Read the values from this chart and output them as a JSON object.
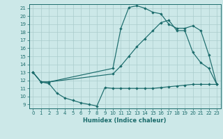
{
  "xlabel": "Humidex (Indice chaleur)",
  "bg_color": "#cce8e8",
  "line_color": "#1a6b6b",
  "grid_color": "#aacccc",
  "xlim": [
    -0.5,
    23.5
  ],
  "ylim": [
    8.5,
    21.5
  ],
  "xticks": [
    0,
    1,
    2,
    3,
    4,
    5,
    6,
    7,
    8,
    9,
    10,
    11,
    12,
    13,
    14,
    15,
    16,
    17,
    18,
    19,
    20,
    21,
    22,
    23
  ],
  "yticks": [
    9,
    10,
    11,
    12,
    13,
    14,
    15,
    16,
    17,
    18,
    19,
    20,
    21
  ],
  "bottom_x": [
    0,
    1,
    2,
    3,
    4,
    5,
    6,
    7,
    8,
    9,
    10,
    11,
    12,
    13,
    14,
    15,
    16,
    17,
    18,
    19,
    20,
    21,
    22,
    23
  ],
  "bottom_y": [
    13.0,
    11.8,
    11.6,
    10.4,
    9.8,
    9.5,
    9.2,
    9.0,
    8.8,
    11.1,
    11.0,
    11.0,
    11.0,
    11.0,
    11.0,
    11.0,
    11.1,
    11.2,
    11.3,
    11.4,
    11.5,
    11.5,
    11.5,
    11.5
  ],
  "mid_x": [
    0,
    1,
    2,
    10,
    11,
    12,
    13,
    14,
    15,
    16,
    17,
    18,
    19,
    20,
    21,
    22,
    23
  ],
  "mid_y": [
    13.0,
    11.8,
    11.8,
    12.8,
    13.8,
    15.0,
    16.2,
    17.2,
    18.2,
    19.2,
    19.5,
    18.2,
    18.2,
    15.5,
    14.2,
    13.5,
    11.5
  ],
  "top_x": [
    0,
    1,
    2,
    10,
    11,
    12,
    13,
    14,
    15,
    16,
    17,
    18,
    19,
    20,
    21,
    22,
    23
  ],
  "top_y": [
    13.0,
    11.8,
    11.8,
    13.5,
    18.5,
    21.1,
    21.3,
    21.0,
    20.5,
    20.3,
    19.0,
    18.5,
    18.5,
    18.8,
    18.2,
    15.2,
    11.5
  ]
}
